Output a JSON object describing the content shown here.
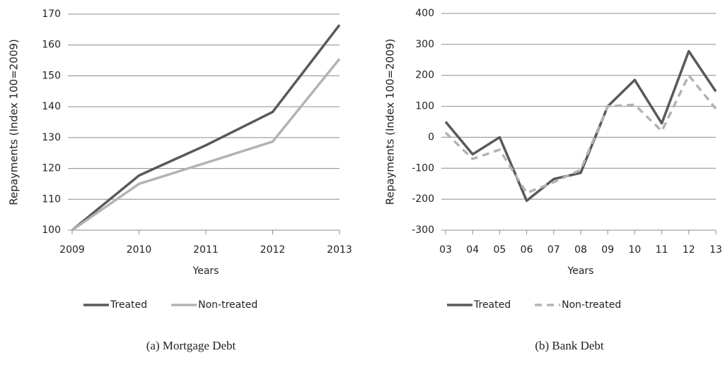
{
  "chart_data": [
    {
      "type": "line",
      "caption": "(a) Mortgage Debt",
      "xlabel": "Years",
      "ylabel": "Repayments (Index 100=2009)",
      "categories": [
        "2009",
        "2010",
        "2011",
        "2012",
        "2013"
      ],
      "series": [
        {
          "name": "Treated",
          "color": "#595959",
          "dash": false,
          "values": [
            100,
            117.7,
            127.5,
            138.3,
            166.5
          ]
        },
        {
          "name": "Non-treated",
          "color": "#b3b3b3",
          "dash": false,
          "values": [
            100,
            115,
            121.8,
            128.7,
            155.5
          ]
        }
      ],
      "ylim": [
        100,
        170
      ],
      "yticks": [
        100,
        110,
        120,
        130,
        140,
        150,
        160,
        170
      ],
      "grid": true,
      "legend": "bottom"
    },
    {
      "type": "line",
      "caption": "(b) Bank Debt",
      "xlabel": "Years",
      "ylabel": "Repayments (Index 100=2009)",
      "categories": [
        "03",
        "04",
        "05",
        "06",
        "07",
        "08",
        "09",
        "10",
        "11",
        "12",
        "13"
      ],
      "series": [
        {
          "name": "Treated",
          "color": "#595959",
          "dash": false,
          "values": [
            50,
            -55,
            0,
            -205,
            -135,
            -115,
            100,
            185,
            45,
            278,
            148
          ]
        },
        {
          "name": "Non-treated",
          "color": "#b3b3b3",
          "dash": true,
          "values": [
            15,
            -70,
            -40,
            -180,
            -145,
            -105,
            100,
            105,
            20,
            200,
            92
          ]
        }
      ],
      "ylim": [
        -300,
        400
      ],
      "yticks": [
        -300,
        -200,
        -100,
        0,
        100,
        200,
        300,
        400
      ],
      "grid": true,
      "legend": "bottom"
    }
  ]
}
